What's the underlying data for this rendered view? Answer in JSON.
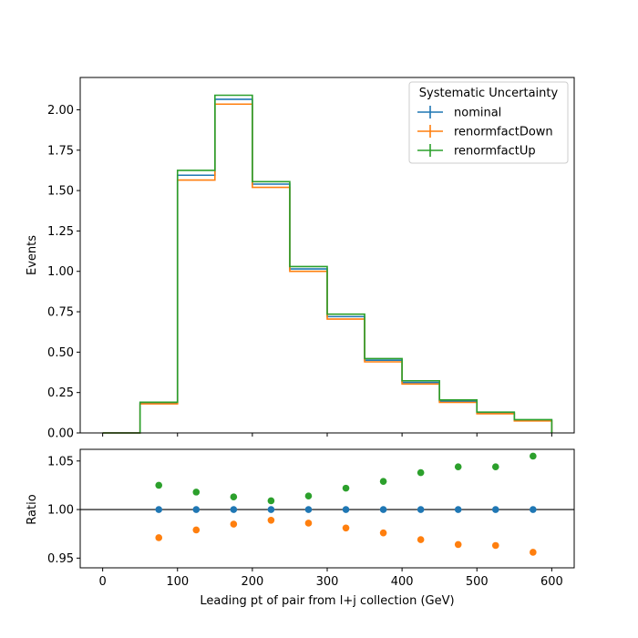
{
  "chart_data": {
    "type": "line",
    "bin_edges": [
      0,
      50,
      100,
      150,
      200,
      250,
      300,
      350,
      400,
      450,
      500,
      550,
      600
    ],
    "xlabel": "Leading pt of pair from l+j collection (GeV)",
    "xlim": [
      -30,
      630
    ],
    "x_ticks": [
      0,
      100,
      200,
      300,
      400,
      500,
      600
    ],
    "legend": {
      "title": "Systematic Uncertainty",
      "placement": "top-right"
    },
    "top": {
      "ylabel": "Events",
      "ylim": [
        0,
        2.2
      ],
      "y_ticks": [
        0.0,
        0.25,
        0.5,
        0.75,
        1.0,
        1.25,
        1.5,
        1.75,
        2.0
      ],
      "y_tick_labels": [
        "0.00",
        "0.25",
        "0.50",
        "0.75",
        "1.00",
        "1.25",
        "1.50",
        "1.75",
        "2.00"
      ],
      "series": [
        {
          "name": "nominal",
          "color": "#1f77b4",
          "values": [
            0.0,
            0.185,
            1.595,
            2.065,
            1.54,
            1.015,
            0.72,
            0.45,
            0.313,
            0.196,
            0.124,
            0.078
          ]
        },
        {
          "name": "renormfactDown",
          "color": "#ff7f0e",
          "values": [
            0.0,
            0.18,
            1.565,
            2.035,
            1.52,
            1.0,
            0.705,
            0.44,
            0.303,
            0.189,
            0.119,
            0.074
          ]
        },
        {
          "name": "renormfactUp",
          "color": "#2ca02c",
          "values": [
            0.0,
            0.19,
            1.625,
            2.09,
            1.555,
            1.03,
            0.735,
            0.46,
            0.323,
            0.204,
            0.129,
            0.082
          ]
        }
      ]
    },
    "ratio": {
      "ylabel": "Ratio",
      "ylim": [
        0.94,
        1.062
      ],
      "y_ticks": [
        0.95,
        1.0,
        1.05
      ],
      "y_tick_labels": [
        "0.95",
        "1.00",
        "1.05"
      ],
      "reference_line": 1.0,
      "x_centers": [
        75,
        125,
        175,
        225,
        275,
        325,
        375,
        425,
        475,
        525,
        575
      ],
      "series": [
        {
          "name": "nominal",
          "color": "#1f77b4",
          "values": [
            1.0,
            1.0,
            1.0,
            1.0,
            1.0,
            1.0,
            1.0,
            1.0,
            1.0,
            1.0,
            1.0
          ]
        },
        {
          "name": "renormfactDown",
          "color": "#ff7f0e",
          "values": [
            0.971,
            0.979,
            0.985,
            0.989,
            0.986,
            0.981,
            0.976,
            0.969,
            0.964,
            0.963,
            0.956
          ]
        },
        {
          "name": "renormfactUp",
          "color": "#2ca02c",
          "values": [
            1.025,
            1.018,
            1.013,
            1.009,
            1.014,
            1.022,
            1.029,
            1.038,
            1.044,
            1.044,
            1.055
          ]
        }
      ]
    }
  }
}
